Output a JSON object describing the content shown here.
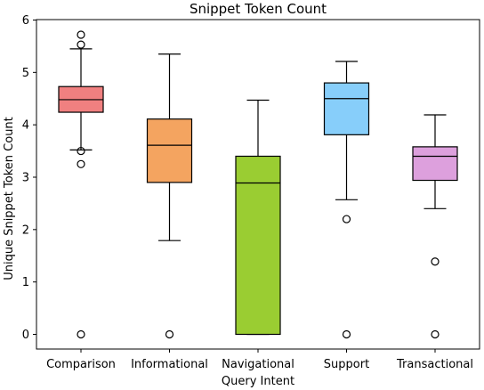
{
  "chart_data": {
    "type": "box",
    "title": "Snippet Token Count",
    "xlabel": "Query Intent",
    "ylabel": "Unique Snippet Token Count",
    "ylim": [
      0,
      6
    ],
    "yticks": [
      0,
      1,
      2,
      3,
      4,
      5,
      6
    ],
    "grid": false,
    "categories": [
      "Comparison",
      "Informational",
      "Navigational",
      "Support",
      "Transactional"
    ],
    "boxes": [
      {
        "category": "Comparison",
        "color": "#f08080",
        "whisker_low": 3.52,
        "q1": 4.24,
        "median": 4.48,
        "q3": 4.73,
        "whisker_high": 5.45,
        "outliers": [
          5.72,
          5.53,
          3.5,
          3.25,
          0
        ]
      },
      {
        "category": "Informational",
        "color": "#f4a460",
        "whisker_low": 1.79,
        "q1": 2.9,
        "median": 3.61,
        "q3": 4.11,
        "whisker_high": 5.35,
        "outliers": [
          0
        ]
      },
      {
        "category": "Navigational",
        "color": "#9acd32",
        "whisker_low": 0.0,
        "q1": 0.0,
        "median": 2.89,
        "q3": 3.4,
        "whisker_high": 4.47,
        "outliers": []
      },
      {
        "category": "Support",
        "color": "#87cefa",
        "whisker_low": 2.57,
        "q1": 3.81,
        "median": 4.5,
        "q3": 4.8,
        "whisker_high": 5.21,
        "outliers": [
          2.2,
          0
        ]
      },
      {
        "category": "Transactional",
        "color": "#dda0dd",
        "whisker_low": 2.4,
        "q1": 2.94,
        "median": 3.4,
        "q3": 3.58,
        "whisker_high": 4.19,
        "outliers": [
          1.39,
          0
        ]
      }
    ]
  }
}
